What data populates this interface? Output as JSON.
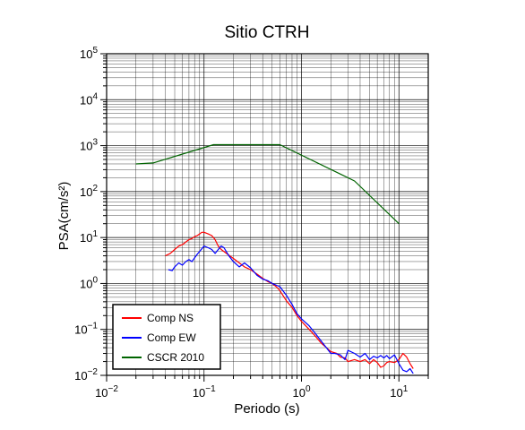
{
  "chart_data": {
    "type": "line",
    "title": "Sitio CTRH",
    "xlabel": "Periodo (s)",
    "ylabel": "PSA(cm/s²)",
    "x_scale": "log",
    "y_scale": "log",
    "xlim": [
      0.01,
      20
    ],
    "ylim": [
      0.01,
      100000
    ],
    "x_ticks": [
      {
        "value": 0.01,
        "base": "10",
        "exp": "−2"
      },
      {
        "value": 0.1,
        "base": "10",
        "exp": "−1"
      },
      {
        "value": 1,
        "base": "10",
        "exp": "0"
      },
      {
        "value": 10,
        "base": "10",
        "exp": "1"
      }
    ],
    "y_ticks": [
      {
        "value": 0.01,
        "base": "10",
        "exp": "−2"
      },
      {
        "value": 0.1,
        "base": "10",
        "exp": "−1"
      },
      {
        "value": 1,
        "base": "10",
        "exp": "0"
      },
      {
        "value": 10,
        "base": "10",
        "exp": "1"
      },
      {
        "value": 100,
        "base": "10",
        "exp": "2"
      },
      {
        "value": 1000,
        "base": "10",
        "exp": "3"
      },
      {
        "value": 10000,
        "base": "10",
        "exp": "4"
      },
      {
        "value": 100000,
        "base": "10",
        "exp": "5"
      }
    ],
    "grid": true,
    "legend_position": "bottom-left",
    "series": [
      {
        "name": "Comp NS",
        "color": "#ff0000",
        "x": [
          0.04,
          0.045,
          0.05,
          0.055,
          0.06,
          0.065,
          0.07,
          0.075,
          0.08,
          0.085,
          0.09,
          0.095,
          0.1,
          0.11,
          0.12,
          0.13,
          0.14,
          0.15,
          0.17,
          0.2,
          0.23,
          0.26,
          0.3,
          0.35,
          0.4,
          0.45,
          0.5,
          0.55,
          0.6,
          0.7,
          0.8,
          0.9,
          1.0,
          1.2,
          1.4,
          1.6,
          1.8,
          2.0,
          2.3,
          2.5,
          2.8,
          3.0,
          3.5,
          4.0,
          4.5,
          5.0,
          5.5,
          6.0,
          6.5,
          7.0,
          7.5,
          8.0,
          9.0,
          10.0,
          11.0,
          12.0,
          13.0,
          14.0
        ],
        "y": [
          4.0,
          4.5,
          5.5,
          6.5,
          7.0,
          8.0,
          9.0,
          9.5,
          10.5,
          11.0,
          12.0,
          13.0,
          13.0,
          12.0,
          11.0,
          9.0,
          6.5,
          5.5,
          4.5,
          3.5,
          2.8,
          2.3,
          2.0,
          1.6,
          1.3,
          1.1,
          1.0,
          0.85,
          0.7,
          0.42,
          0.3,
          0.2,
          0.15,
          0.1,
          0.07,
          0.05,
          0.04,
          0.033,
          0.03,
          0.025,
          0.024,
          0.02,
          0.022,
          0.02,
          0.022,
          0.018,
          0.022,
          0.019,
          0.015,
          0.016,
          0.019,
          0.02,
          0.019,
          0.022,
          0.03,
          0.025,
          0.018,
          0.014
        ]
      },
      {
        "name": "Comp EW",
        "color": "#0000ff",
        "x": [
          0.043,
          0.047,
          0.05,
          0.055,
          0.06,
          0.065,
          0.07,
          0.075,
          0.08,
          0.085,
          0.09,
          0.1,
          0.11,
          0.12,
          0.13,
          0.14,
          0.15,
          0.16,
          0.18,
          0.2,
          0.23,
          0.26,
          0.3,
          0.35,
          0.4,
          0.45,
          0.5,
          0.6,
          0.7,
          0.8,
          0.9,
          1.0,
          1.2,
          1.4,
          1.6,
          1.8,
          2.0,
          2.2,
          2.5,
          2.8,
          3.0,
          3.5,
          4.0,
          4.5,
          5.0,
          5.5,
          6.0,
          6.5,
          7.0,
          7.5,
          8.0,
          9.0,
          10.0,
          11.0,
          12.0,
          13.0,
          14.0
        ],
        "y": [
          2.0,
          1.9,
          2.3,
          2.8,
          2.5,
          3.0,
          3.3,
          3.0,
          3.6,
          4.3,
          5.0,
          6.5,
          6.0,
          5.5,
          4.5,
          5.5,
          6.5,
          6.0,
          4.0,
          3.0,
          2.3,
          2.8,
          2.2,
          1.5,
          1.25,
          1.15,
          1.0,
          0.85,
          0.55,
          0.35,
          0.22,
          0.17,
          0.12,
          0.08,
          0.055,
          0.04,
          0.03,
          0.03,
          0.028,
          0.022,
          0.035,
          0.03,
          0.025,
          0.03,
          0.022,
          0.026,
          0.024,
          0.027,
          0.024,
          0.027,
          0.023,
          0.028,
          0.018,
          0.013,
          0.012,
          0.014,
          0.011
        ]
      },
      {
        "name": "CSCR 2010",
        "color": "#006400",
        "x": [
          0.02,
          0.03,
          0.125,
          0.6,
          3.5,
          10.0
        ],
        "y": [
          400,
          420,
          1050,
          1050,
          170,
          20
        ]
      }
    ]
  }
}
